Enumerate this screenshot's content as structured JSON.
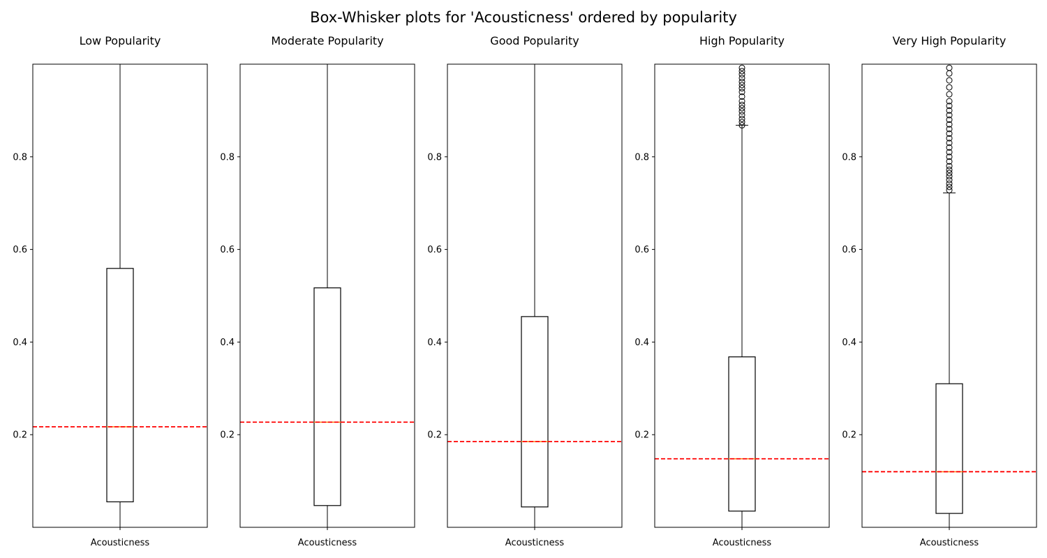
{
  "suptitle": "Box-Whisker plots for 'Acousticness' ordered by popularity",
  "chart_data": {
    "type": "box",
    "ylim": [
      0,
      1
    ],
    "yticks": [
      "0.2",
      "0.4",
      "0.6",
      "0.8"
    ],
    "grid": false,
    "colors": {
      "box": "#000000",
      "median": "#ff7f0e",
      "mean_line": "#ff0000"
    },
    "panels": [
      {
        "title": "Low Popularity",
        "xlabel": "Acousticness",
        "whislo": 0.0,
        "q1": 0.055,
        "median": 0.217,
        "q3": 0.559,
        "whishi": 1.0,
        "mean": 0.217,
        "fliers": []
      },
      {
        "title": "Moderate Popularity",
        "xlabel": "Acousticness",
        "whislo": 0.0,
        "q1": 0.047,
        "median": 0.227,
        "q3": 0.517,
        "whishi": 1.0,
        "mean": 0.227,
        "fliers": []
      },
      {
        "title": "Good Popularity",
        "xlabel": "Acousticness",
        "whislo": 0.0,
        "q1": 0.044,
        "median": 0.185,
        "q3": 0.455,
        "whishi": 1.0,
        "mean": 0.185,
        "fliers": []
      },
      {
        "title": "High Popularity",
        "xlabel": "Acousticness",
        "whislo": 0.0,
        "q1": 0.035,
        "median": 0.148,
        "q3": 0.368,
        "whishi": 0.868,
        "mean": 0.148,
        "fliers": [
          0.868,
          0.875,
          0.882,
          0.89,
          0.898,
          0.905,
          0.912,
          0.92,
          0.93,
          0.94,
          0.948,
          0.955,
          0.962,
          0.97,
          0.978,
          0.985,
          0.992
        ]
      },
      {
        "title": "Very High Popularity",
        "xlabel": "Acousticness",
        "whislo": 0.0,
        "q1": 0.03,
        "median": 0.12,
        "q3": 0.31,
        "whishi": 0.722,
        "mean": 0.12,
        "fliers": [
          0.728,
          0.735,
          0.742,
          0.75,
          0.758,
          0.765,
          0.772,
          0.78,
          0.79,
          0.8,
          0.81,
          0.82,
          0.83,
          0.84,
          0.85,
          0.86,
          0.87,
          0.88,
          0.89,
          0.9,
          0.91,
          0.92,
          0.935,
          0.95,
          0.965,
          0.98,
          0.992
        ]
      }
    ]
  }
}
